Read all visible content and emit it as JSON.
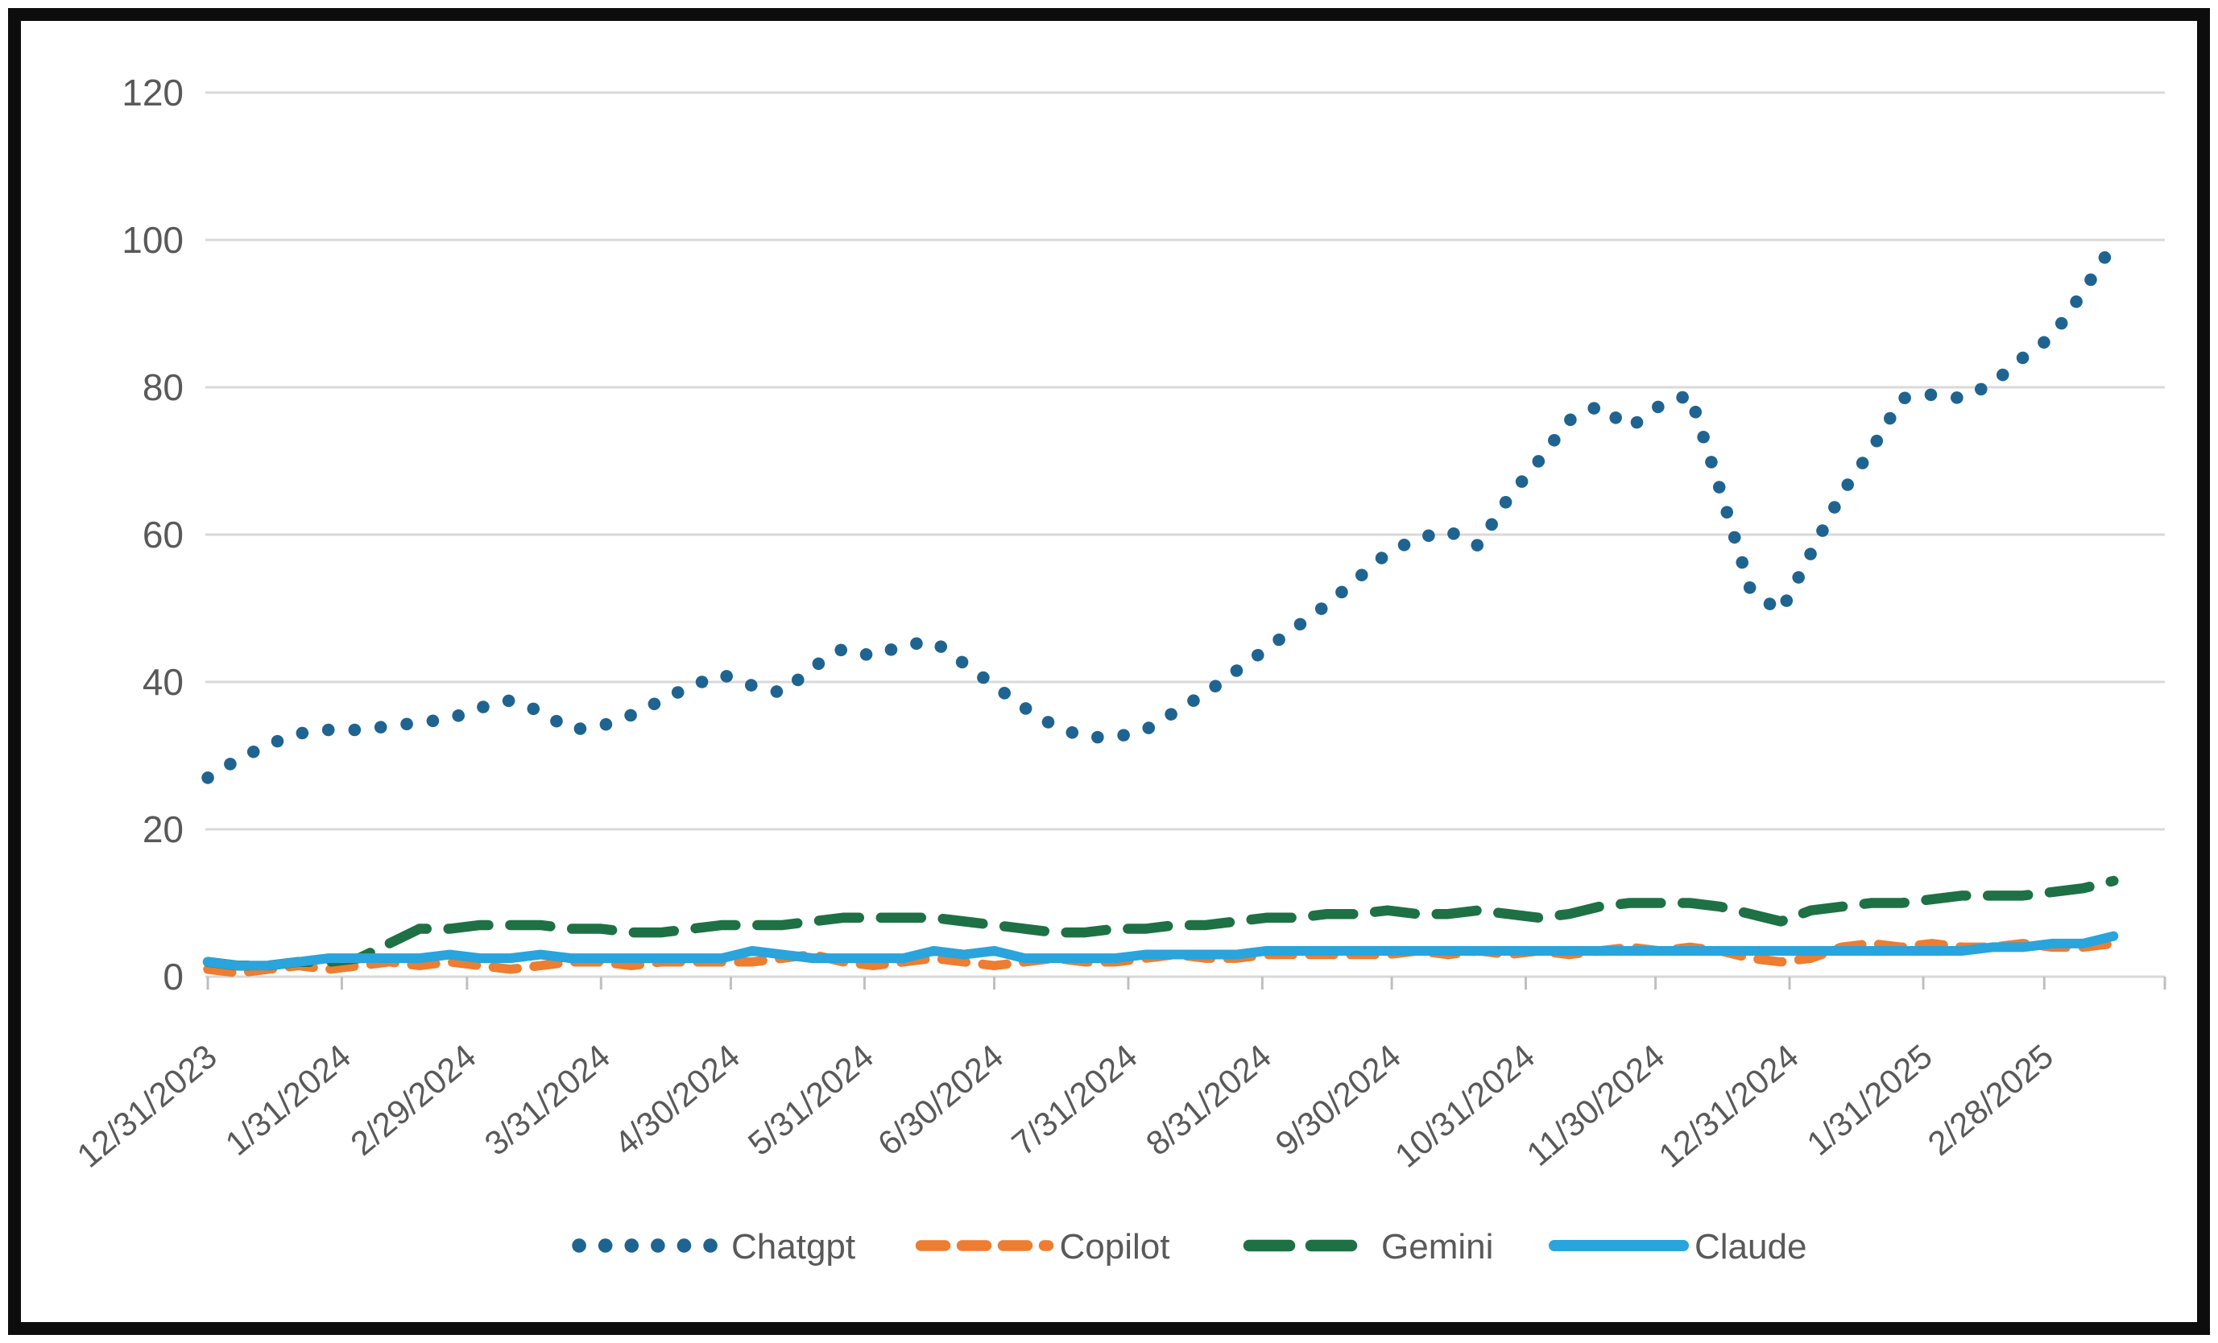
{
  "chart_data": {
    "type": "line",
    "title": "",
    "xlabel": "",
    "ylabel": "",
    "ylim": [
      0,
      120
    ],
    "y_ticks": [
      0,
      20,
      40,
      60,
      80,
      100,
      120
    ],
    "grid": true,
    "legend_position": "bottom",
    "axis_text_color": "#595959",
    "legend_text_color": "#595959",
    "grid_color": "#D9D9D9",
    "tick_color": "#BFBFBF",
    "x_tick_labels": [
      "12/31/2023",
      "1/31/2024",
      "2/29/2024",
      "3/31/2024",
      "4/30/2024",
      "5/31/2024",
      "6/30/2024",
      "7/31/2024",
      "8/31/2024",
      "9/30/2024",
      "10/31/2024",
      "11/30/2024",
      "12/31/2024",
      "1/31/2025",
      "2/28/2025"
    ],
    "x_tick_indices": [
      0,
      4.43,
      8.57,
      13.0,
      17.29,
      21.71,
      26.0,
      30.43,
      34.86,
      39.14,
      43.57,
      47.86,
      52.29,
      56.71,
      60.71
    ],
    "x_unit": "weekly points starting 12/31/2023",
    "series": [
      {
        "name": "Chatgpt",
        "color": "#1F6490",
        "line_style": "dotted",
        "values": [
          27,
          29.5,
          31.5,
          33,
          33.5,
          33.5,
          34,
          34.5,
          35,
          36.5,
          37.5,
          36,
          33.5,
          34,
          35.5,
          37.5,
          39.5,
          41,
          39.5,
          38.5,
          42,
          44.5,
          43.5,
          45,
          45.5,
          42.5,
          39.5,
          36.5,
          34,
          32.5,
          32.5,
          33.5,
          36,
          38.5,
          41.5,
          44.5,
          47.5,
          50.5,
          54,
          57.5,
          59.5,
          60.5,
          58.5,
          65,
          70,
          75.5,
          77.5,
          74.5,
          77.5,
          79,
          66,
          52.5,
          49.5,
          57.5,
          65.5,
          71.5,
          78.5,
          79,
          78.5,
          80.5,
          84,
          87,
          93,
          99.5
        ]
      },
      {
        "name": "Copilot",
        "color": "#ED7D31",
        "line_style": "dashed",
        "values": [
          1,
          0.5,
          1,
          1.5,
          1,
          1.5,
          2,
          1.5,
          2,
          1.5,
          1,
          1.5,
          2,
          2,
          1.5,
          2,
          2,
          2,
          2,
          2.5,
          3,
          2,
          1.5,
          2,
          2.5,
          2,
          1.5,
          2,
          2.5,
          2,
          2,
          2.5,
          3,
          2.5,
          2.5,
          3,
          3,
          3,
          3,
          3,
          3.5,
          3,
          3.5,
          3,
          3.5,
          3,
          3.5,
          4,
          3.5,
          4,
          3.5,
          2.5,
          2,
          2.5,
          4,
          4.5,
          4,
          4.5,
          4,
          4,
          4.5,
          4,
          4,
          4.5
        ]
      },
      {
        "name": "Gemini",
        "color": "#1E7144",
        "line_style": "long-dash",
        "values": [
          2,
          1.5,
          1.5,
          2,
          2,
          2.5,
          4.5,
          6.5,
          6.5,
          7,
          7,
          7,
          6.5,
          6.5,
          6,
          6,
          6.5,
          7,
          7,
          7,
          7.5,
          8,
          8,
          8,
          8,
          7.5,
          7,
          6.5,
          6,
          6,
          6.5,
          6.5,
          7,
          7,
          7.5,
          8,
          8,
          8.5,
          8.5,
          9,
          8.5,
          8.5,
          9,
          8.5,
          8,
          8.5,
          9.5,
          10,
          10,
          10,
          9.5,
          8.5,
          7.5,
          9,
          9.5,
          10,
          10,
          10.5,
          11,
          11,
          11,
          11.5,
          12,
          13
        ]
      },
      {
        "name": "Claude",
        "color": "#29A4DC",
        "line_style": "solid",
        "values": [
          2,
          1.5,
          1.5,
          2,
          2.5,
          2.5,
          2.5,
          2.5,
          3,
          2.5,
          2.5,
          3,
          2.5,
          2.5,
          2.5,
          2.5,
          2.5,
          2.5,
          3.5,
          3,
          2.5,
          2.5,
          2.5,
          2.5,
          3.5,
          3,
          3.5,
          2.5,
          2.5,
          2.5,
          2.5,
          3,
          3,
          3,
          3,
          3.5,
          3.5,
          3.5,
          3.5,
          3.5,
          3.5,
          3.5,
          3.5,
          3.5,
          3.5,
          3.5,
          3.5,
          3.5,
          3.5,
          3.5,
          3.5,
          3.5,
          3.5,
          3.5,
          3.5,
          3.5,
          3.5,
          3.5,
          3.5,
          4,
          4,
          4.5,
          4.5,
          5.5
        ]
      }
    ]
  }
}
